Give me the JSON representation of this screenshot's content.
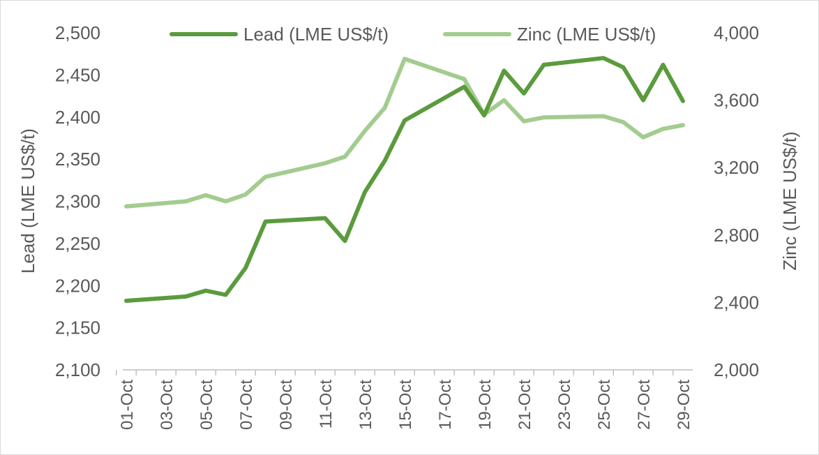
{
  "chart_data": {
    "type": "line",
    "title": "",
    "x_tick_labels": [
      "01-Oct",
      "03-Oct",
      "05-Oct",
      "07-Oct",
      "09-Oct",
      "11-Oct",
      "13-Oct",
      "15-Oct",
      "17-Oct",
      "19-Oct",
      "21-Oct",
      "23-Oct",
      "25-Oct",
      "27-Oct",
      "29-Oct"
    ],
    "x_range": [
      "01-Oct",
      "29-Oct"
    ],
    "left_axis": {
      "label": "Lead (LME US$/t)",
      "min": 2100,
      "max": 2500,
      "step": 50,
      "ticks": [
        "2,100",
        "2,150",
        "2,200",
        "2,250",
        "2,300",
        "2,350",
        "2,400",
        "2,450",
        "2,500"
      ]
    },
    "right_axis": {
      "label": "Zinc (LME US$/t)",
      "min": 2000,
      "max": 4000,
      "step": 400,
      "ticks": [
        "2,000",
        "2,400",
        "2,800",
        "3,200",
        "3,600",
        "4,000"
      ]
    },
    "legend_position": "top",
    "grid": false,
    "series": [
      {
        "name": "Lead (LME US$/t)",
        "axis": "left",
        "color": "#5b9b3e",
        "x": [
          1,
          4,
          5,
          6,
          7,
          8,
          11,
          12,
          13,
          14,
          15,
          18,
          19,
          20,
          21,
          22,
          25,
          26,
          27,
          28,
          29
        ],
        "values": [
          2182,
          2187,
          2194,
          2189,
          2221,
          2276,
          2280,
          2253,
          2311,
          2348,
          2396,
          2436,
          2402,
          2455,
          2428,
          2462,
          2470,
          2459,
          2420,
          2462,
          2419
        ]
      },
      {
        "name": "Zinc (LME US$/t)",
        "axis": "right",
        "color": "#a3cc8f",
        "x": [
          1,
          4,
          5,
          6,
          7,
          8,
          11,
          12,
          13,
          14,
          15,
          18,
          19,
          20,
          21,
          22,
          25,
          26,
          27,
          28,
          29
        ],
        "values": [
          2970,
          3000,
          3036,
          3000,
          3040,
          3145,
          3226,
          3265,
          3418,
          3555,
          3845,
          3725,
          3515,
          3600,
          3475,
          3498,
          3505,
          3470,
          3380,
          3430,
          3452
        ]
      }
    ]
  }
}
